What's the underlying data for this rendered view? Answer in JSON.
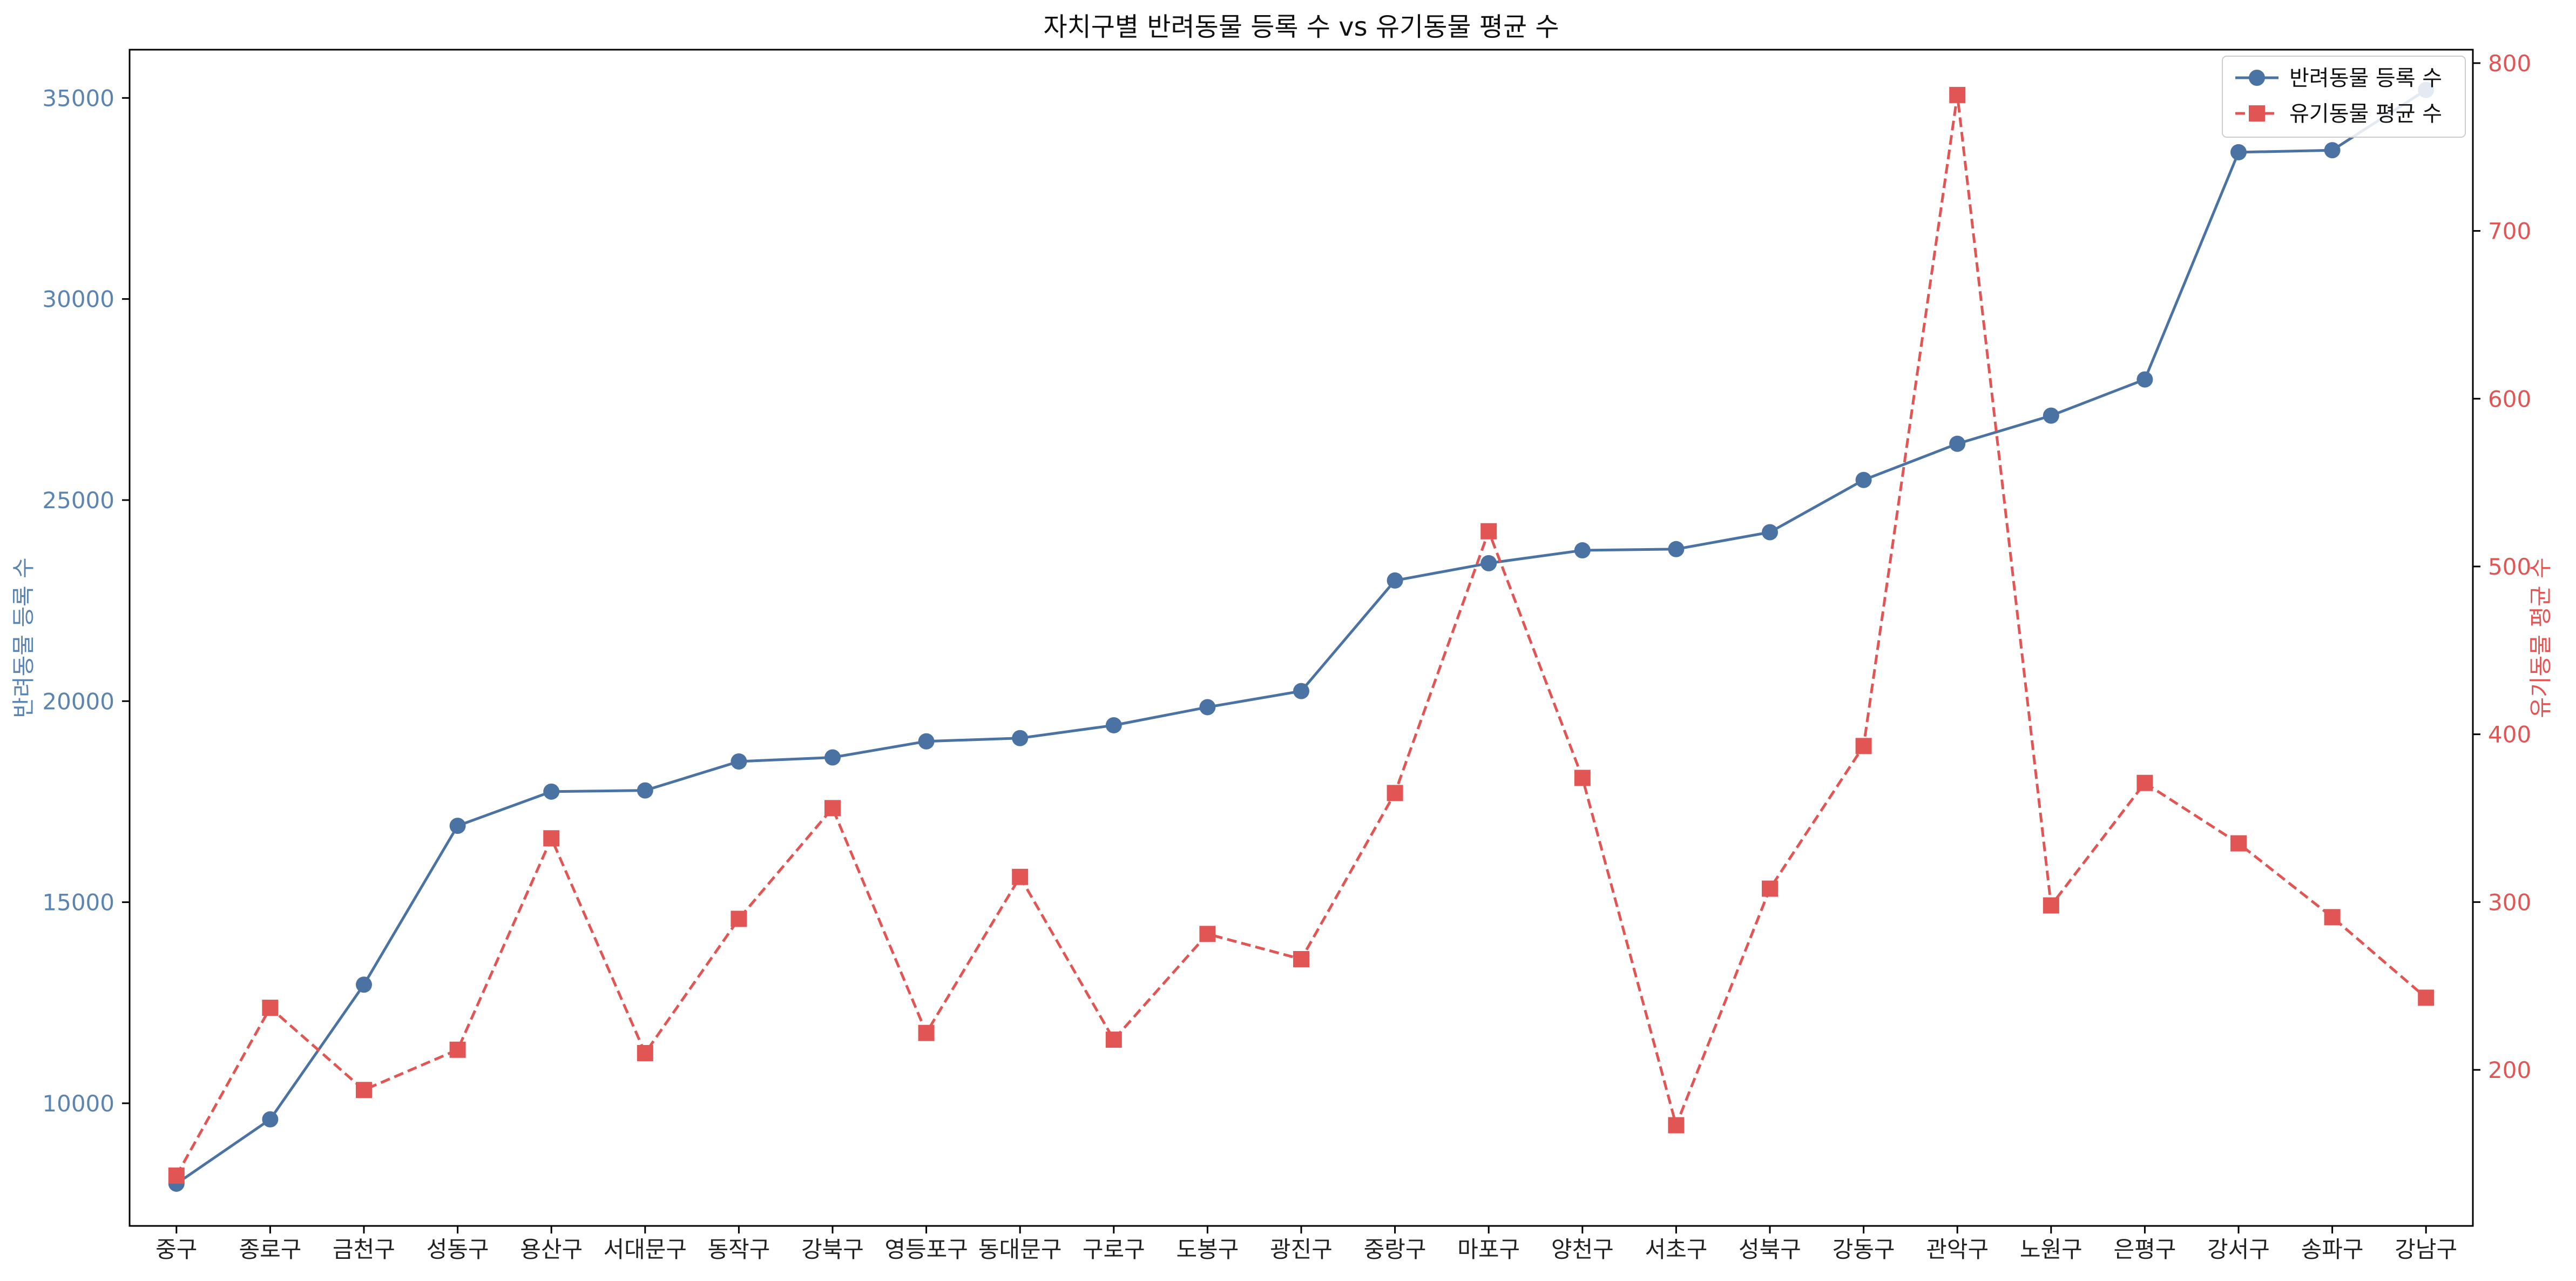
{
  "chart_data": {
    "type": "line",
    "title": "자치구별 반려동물 등록 수 vs 유기동물 평균 수",
    "categories": [
      "중구",
      "종로구",
      "금천구",
      "성동구",
      "용산구",
      "서대문구",
      "동작구",
      "강북구",
      "영등포구",
      "동대문구",
      "구로구",
      "도봉구",
      "광진구",
      "중랑구",
      "마포구",
      "양천구",
      "서초구",
      "성북구",
      "강동구",
      "관악구",
      "노원구",
      "은평구",
      "강서구",
      "송파구",
      "강남구"
    ],
    "xlabel": "",
    "series": [
      {
        "name": "반려동물 등록 수",
        "axis": "left",
        "color": "#4a72a2",
        "line_style": "solid",
        "marker": "circle",
        "values": [
          8000,
          9600,
          12950,
          16900,
          17750,
          17780,
          18500,
          18600,
          19000,
          19080,
          19400,
          19850,
          20250,
          23000,
          23430,
          23750,
          23780,
          24200,
          25500,
          26400,
          27100,
          28000,
          33650,
          33700,
          35200
        ]
      },
      {
        "name": "유기동물 평균 수",
        "axis": "right",
        "color": "#e15555",
        "line_style": "dashed",
        "marker": "square",
        "values": [
          137,
          237,
          188,
          212,
          338,
          210,
          290,
          356,
          222,
          315,
          218,
          281,
          266,
          365,
          521,
          374,
          167,
          308,
          393,
          781,
          298,
          371,
          335,
          291,
          243
        ]
      }
    ],
    "left_axis": {
      "label": "반려동물 등록 수",
      "color": "#5b84b1",
      "ylim": [
        6950,
        36200
      ],
      "ticks": [
        10000,
        15000,
        20000,
        25000,
        30000,
        35000
      ]
    },
    "right_axis": {
      "label": "유기동물 평균 수",
      "color": "#e15555",
      "ylim": [
        107,
        808
      ],
      "ticks": [
        200,
        300,
        400,
        500,
        600,
        700,
        800
      ]
    },
    "legend_position": "top-right",
    "grid": false
  }
}
